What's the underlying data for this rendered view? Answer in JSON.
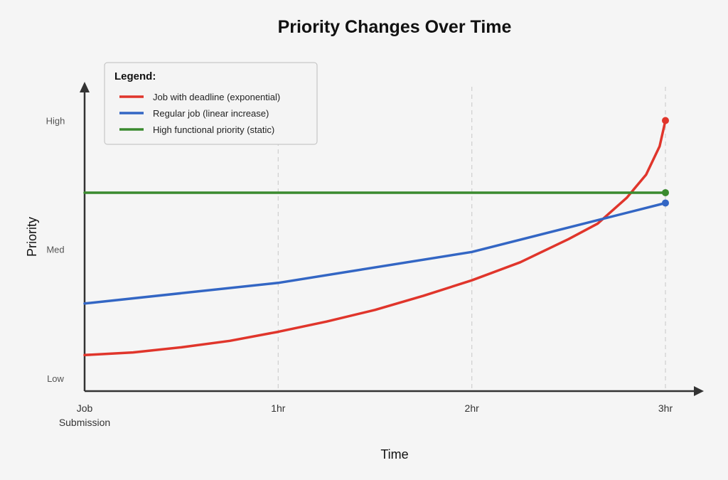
{
  "chart_data": {
    "type": "line",
    "title": "Priority Changes Over Time",
    "xlabel": "Time",
    "ylabel": "Priority",
    "x_ticks": [
      "Job Submission",
      "1hr",
      "2hr",
      "3hr"
    ],
    "x_tick_lines": [
      [
        "Job",
        "Submission"
      ],
      [
        "1hr"
      ],
      [
        "2hr"
      ],
      [
        "3hr"
      ]
    ],
    "xlim": [
      0,
      3
    ],
    "y_ticks": [
      {
        "label": "Low",
        "value": 0
      },
      {
        "label": "Med",
        "value": 0.5
      },
      {
        "label": "High",
        "value": 1
      }
    ],
    "ylim": [
      -0.05,
      1.12
    ],
    "grid": "vertical dashed lines at 1hr, 2hr, 3hr",
    "legend": {
      "title": "Legend:",
      "position": "top-left"
    },
    "series": [
      {
        "name": "Job with deadline (exponential)",
        "color": "#e0352b",
        "end_marker": true,
        "points": [
          [
            0,
            0.09
          ],
          [
            0.25,
            0.1
          ],
          [
            0.5,
            0.12
          ],
          [
            0.75,
            0.145
          ],
          [
            1,
            0.18
          ],
          [
            1.25,
            0.22
          ],
          [
            1.5,
            0.265
          ],
          [
            1.75,
            0.32
          ],
          [
            2,
            0.38
          ],
          [
            2.25,
            0.45
          ],
          [
            2.5,
            0.54
          ],
          [
            2.65,
            0.6
          ],
          [
            2.8,
            0.7
          ],
          [
            2.9,
            0.79
          ],
          [
            2.97,
            0.9
          ],
          [
            3,
            1.0
          ]
        ]
      },
      {
        "name": "Regular job (linear increase)",
        "color": "#3366c4",
        "end_marker": true,
        "points": [
          [
            0,
            0.29
          ],
          [
            1,
            0.37
          ],
          [
            2,
            0.49
          ],
          [
            3,
            0.68
          ]
        ]
      },
      {
        "name": "High functional priority (static)",
        "color": "#3a8a2e",
        "end_marker": true,
        "points": [
          [
            0,
            0.72
          ],
          [
            3,
            0.72
          ]
        ]
      }
    ]
  }
}
